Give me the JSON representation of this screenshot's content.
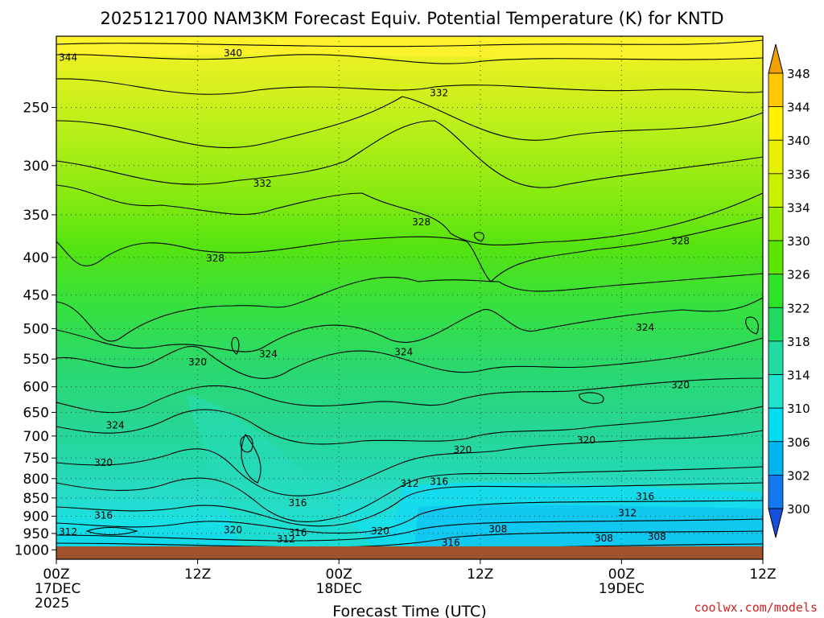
{
  "chart_data": {
    "type": "heatmap",
    "title": "2025121700 NAM3KM Forecast Equiv. Potential Temperature (K) for KNTD",
    "xlabel": "Forecast Time (UTC)",
    "ylabel": "",
    "credit": "coolwx.com/models",
    "x_ticks": [
      {
        "hour": 0,
        "lines": [
          "00Z",
          "17DEC",
          "2025"
        ]
      },
      {
        "hour": 12,
        "lines": [
          "12Z"
        ]
      },
      {
        "hour": 24,
        "lines": [
          "00Z",
          "18DEC"
        ]
      },
      {
        "hour": 36,
        "lines": [
          "12Z"
        ]
      },
      {
        "hour": 48,
        "lines": [
          "00Z",
          "19DEC"
        ]
      },
      {
        "hour": 60,
        "lines": [
          "12Z"
        ]
      }
    ],
    "xlim": [
      0,
      60
    ],
    "y_ticks": [
      250,
      300,
      350,
      400,
      450,
      500,
      550,
      600,
      650,
      700,
      750,
      800,
      850,
      900,
      950,
      1000
    ],
    "ylim_hpa": [
      200,
      1030
    ],
    "colorbar": {
      "ticks": [
        348,
        344,
        340,
        336,
        334,
        330,
        326,
        322,
        318,
        314,
        310,
        306,
        302,
        300
      ],
      "colors": [
        "#f0a000",
        "#ffc800",
        "#fff000",
        "#e6f000",
        "#c8f000",
        "#96ec00",
        "#5ae600",
        "#2ee22a",
        "#20dc60",
        "#20dca0",
        "#20e4d0",
        "#00dcf0",
        "#00b4f0",
        "#1478f0",
        "#1450dc"
      ]
    },
    "contour_labels": [
      {
        "text": "340",
        "hour": 15.0,
        "hpa": 212
      },
      {
        "text": "344",
        "hour": 1.0,
        "hpa": 215
      },
      {
        "text": "332",
        "hour": 32.5,
        "hpa": 240
      },
      {
        "text": "332",
        "hour": 17.5,
        "hpa": 319
      },
      {
        "text": "328",
        "hour": 31.0,
        "hpa": 360
      },
      {
        "text": "328",
        "hour": 53.0,
        "hpa": 382
      },
      {
        "text": "328",
        "hour": 13.5,
        "hpa": 403
      },
      {
        "text": "324",
        "hour": 50.0,
        "hpa": 501
      },
      {
        "text": "324",
        "hour": 29.5,
        "hpa": 541
      },
      {
        "text": "324",
        "hour": 18.0,
        "hpa": 544
      },
      {
        "text": "320",
        "hour": 12.0,
        "hpa": 558
      },
      {
        "text": "320",
        "hour": 53.0,
        "hpa": 600
      },
      {
        "text": "324",
        "hour": 5.0,
        "hpa": 680
      },
      {
        "text": "320",
        "hour": 45.0,
        "hpa": 713
      },
      {
        "text": "320",
        "hour": 34.5,
        "hpa": 735
      },
      {
        "text": "320",
        "hour": 4.0,
        "hpa": 765
      },
      {
        "text": "312",
        "hour": 30.0,
        "hpa": 817
      },
      {
        "text": "316",
        "hour": 32.5,
        "hpa": 812
      },
      {
        "text": "316",
        "hour": 50.0,
        "hpa": 850
      },
      {
        "text": "316",
        "hour": 20.5,
        "hpa": 868
      },
      {
        "text": "316",
        "hour": 4.0,
        "hpa": 902
      },
      {
        "text": "312",
        "hour": 48.5,
        "hpa": 896
      },
      {
        "text": "312",
        "hour": 1.0,
        "hpa": 950
      },
      {
        "text": "308",
        "hour": 37.5,
        "hpa": 942
      },
      {
        "text": "320",
        "hour": 15.0,
        "hpa": 944
      },
      {
        "text": "316",
        "hour": 20.5,
        "hpa": 952
      },
      {
        "text": "320",
        "hour": 27.5,
        "hpa": 948
      },
      {
        "text": "312",
        "hour": 19.5,
        "hpa": 972
      },
      {
        "text": "308",
        "hour": 46.5,
        "hpa": 970
      },
      {
        "text": "308",
        "hour": 51.0,
        "hpa": 965
      },
      {
        "text": "316",
        "hour": 33.5,
        "hpa": 983
      }
    ]
  }
}
